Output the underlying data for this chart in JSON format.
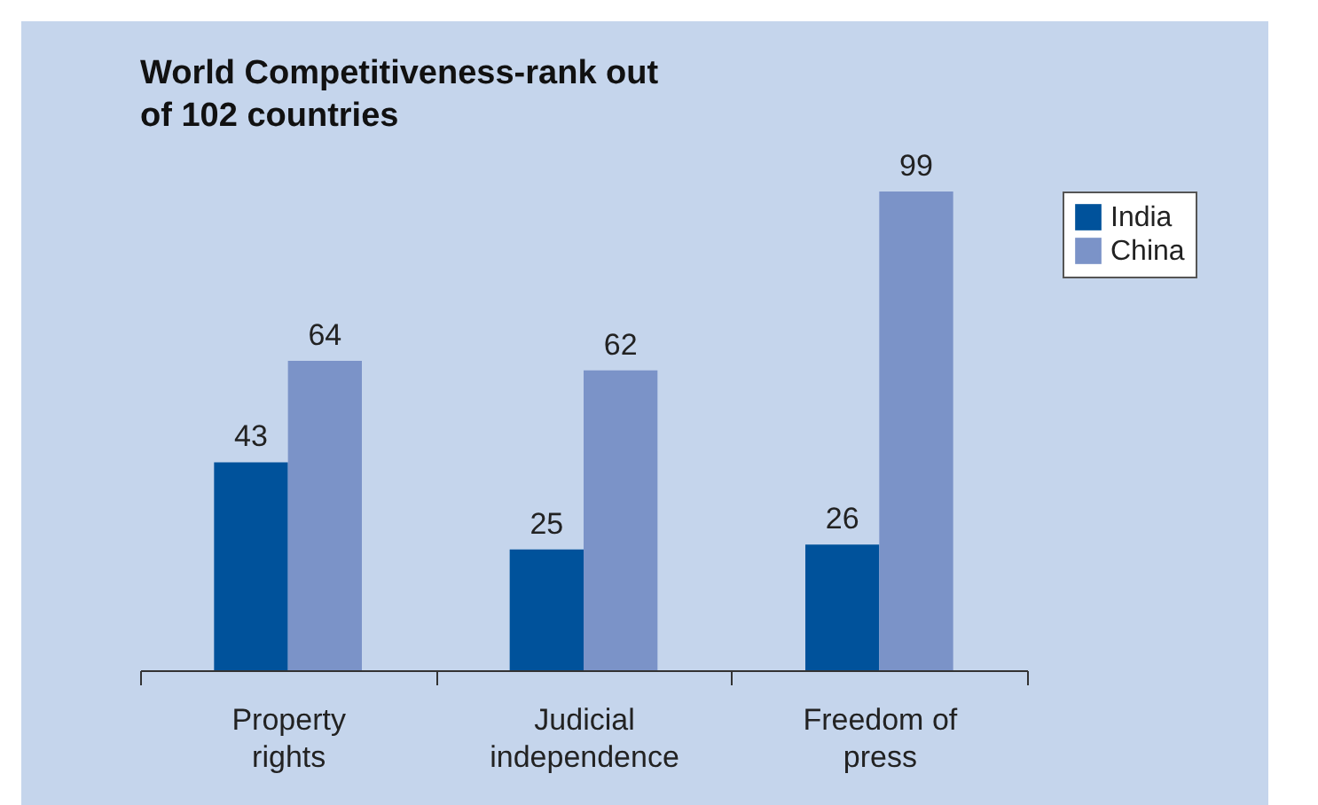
{
  "chart_data": {
    "type": "bar",
    "title": "World Competitiveness-rank out of 102 countries",
    "categories": [
      "Property rights",
      "Judicial independence",
      "Freedom of press"
    ],
    "series": [
      {
        "name": "India",
        "color": "#00529b",
        "values": [
          43,
          25,
          26
        ]
      },
      {
        "name": "China",
        "color": "#7b93c8",
        "values": [
          64,
          62,
          99
        ]
      }
    ],
    "data_labels": true,
    "grid": false,
    "legend": "right"
  }
}
